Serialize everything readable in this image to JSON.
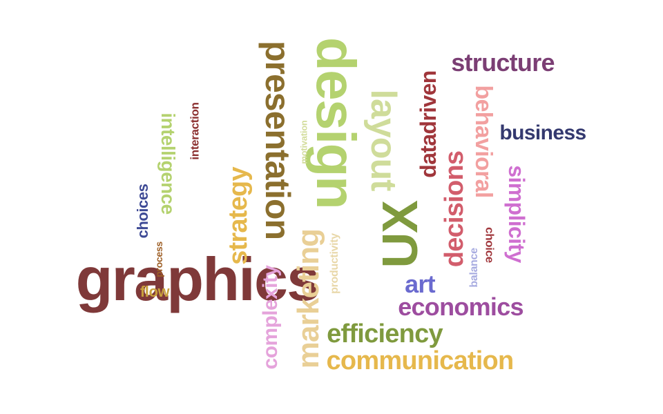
{
  "words": [
    {
      "id": "graphics",
      "text": "graphics",
      "color": "#7f3939"
    },
    {
      "id": "design",
      "text": "design",
      "color": "#b4d26f"
    },
    {
      "id": "presentation",
      "text": "presentation",
      "color": "#8b6f2e"
    },
    {
      "id": "ux",
      "text": "UX",
      "color": "#7f9a3e"
    },
    {
      "id": "layout",
      "text": "layout",
      "color": "#cfdc9a"
    },
    {
      "id": "strategy",
      "text": "strategy",
      "color": "#e6b84c"
    },
    {
      "id": "marketing",
      "text": "marketing",
      "color": "#e9cf96"
    },
    {
      "id": "communication",
      "text": "communication",
      "color": "#e6b84c"
    },
    {
      "id": "efficiency",
      "text": "efficiency",
      "color": "#7f9a3e"
    },
    {
      "id": "economics",
      "text": "economics",
      "color": "#9d4d9f"
    },
    {
      "id": "structure",
      "text": "structure",
      "color": "#7b3e74"
    },
    {
      "id": "business",
      "text": "business",
      "color": "#34396f"
    },
    {
      "id": "decisions",
      "text": "decisions",
      "color": "#d25d6c"
    },
    {
      "id": "datadriven",
      "text": "datadriven",
      "color": "#a0363b"
    },
    {
      "id": "behavioral",
      "text": "behavioral",
      "color": "#f2a0a0"
    },
    {
      "id": "simplicity",
      "text": "simplicity",
      "color": "#cf6fd0"
    },
    {
      "id": "complexity",
      "text": "complexity",
      "color": "#e5a3db"
    },
    {
      "id": "intelligence",
      "text": "intelligence",
      "color": "#b4d26f"
    },
    {
      "id": "art",
      "text": "art",
      "color": "#6a6acf"
    },
    {
      "id": "choices",
      "text": "choices",
      "color": "#3e4a95"
    },
    {
      "id": "flow",
      "text": "flow",
      "color": "#c9a13c"
    },
    {
      "id": "interaction",
      "text": "interaction",
      "color": "#8b2f2f"
    },
    {
      "id": "productivity",
      "text": "productivity",
      "color": "#e8d7a8"
    },
    {
      "id": "choice",
      "text": "choice",
      "color": "#a0363b"
    },
    {
      "id": "balance",
      "text": "balance",
      "color": "#a7abe0"
    },
    {
      "id": "process",
      "text": "process",
      "color": "#9d5e25"
    },
    {
      "id": "motivation",
      "text": "motivation",
      "color": "#d2dc9a"
    }
  ]
}
